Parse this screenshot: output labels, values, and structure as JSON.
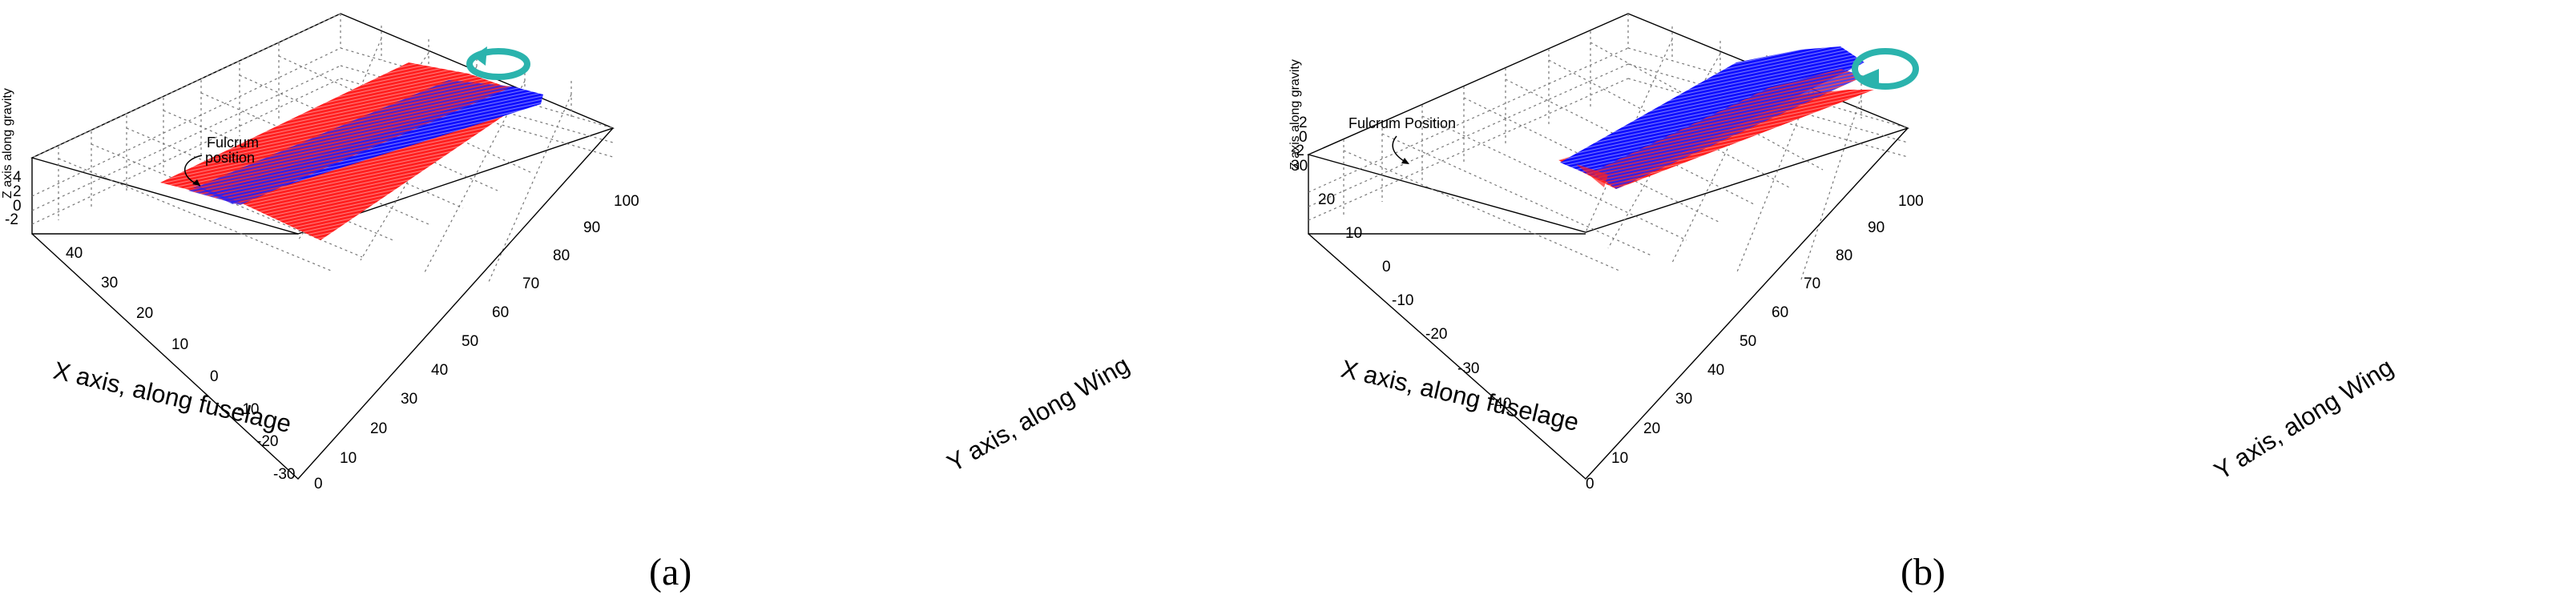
{
  "chart_data": [
    {
      "type": "3d-surface",
      "panel": "a",
      "caption": "(a)",
      "xlabel": "X axis, along fuselage",
      "ylabel": "Y axis, along Wing",
      "zlabel": "Z axis along gravity",
      "x_ticks": [
        -30,
        -20,
        -10,
        0,
        10,
        20,
        30,
        40
      ],
      "y_ticks": [
        0,
        10,
        20,
        30,
        40,
        50,
        60,
        70,
        80,
        90,
        100
      ],
      "z_ticks": [
        -2,
        0,
        2,
        4
      ],
      "annotation": [
        "Fulcrum",
        "position"
      ],
      "grid": true,
      "series_colors": [
        "#ff0000",
        "#0000ff"
      ],
      "rotation_arrow": "counter-clockwise",
      "arrow_color": "#2bb3ad"
    },
    {
      "type": "3d-surface",
      "panel": "b",
      "caption": "(b)",
      "xlabel": "X axis, along fuselage",
      "ylabel": "Y axis, along Wing",
      "zlabel": "Z axis along gravity",
      "x_ticks": [
        -40,
        -30,
        -20,
        -10,
        0,
        10,
        20,
        30
      ],
      "y_ticks": [
        0,
        10,
        20,
        30,
        40,
        50,
        60,
        70,
        80,
        90,
        100
      ],
      "z_ticks": [
        -2,
        0,
        2
      ],
      "annotation": [
        "Fulcrum Position"
      ],
      "grid": true,
      "series_colors": [
        "#0000ff",
        "#ff0000"
      ],
      "rotation_arrow": "clockwise",
      "arrow_color": "#2bb3ad"
    }
  ]
}
